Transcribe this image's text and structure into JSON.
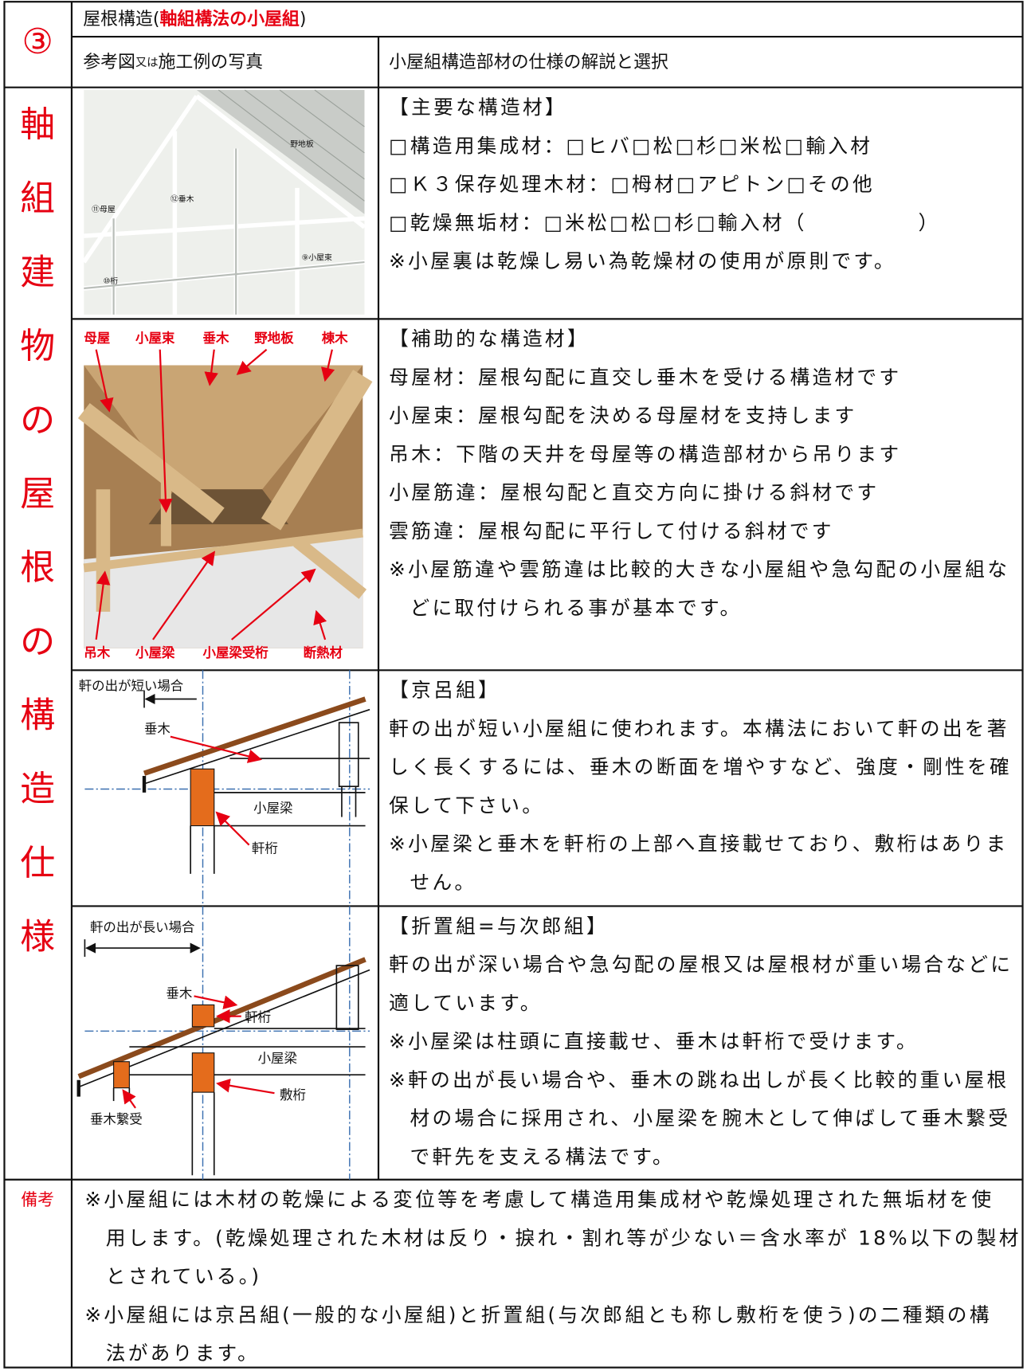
{
  "header": {
    "number": "③",
    "title_prefix": "屋根構造(",
    "title_emphasis": "軸組構法の小屋組",
    "title_suffix": ")",
    "col_figure": [
      "参考図",
      "又は",
      "施工例の写真"
    ],
    "col_spec": "小屋組構造部材の仕様の解説と選択"
  },
  "side_label": [
    "軸",
    "組",
    "建",
    "物",
    "の",
    "屋",
    "根",
    "の",
    "構",
    "造",
    "仕",
    "様"
  ],
  "rows": [
    {
      "figure_labels": [
        "野地板",
        "⑪母屋",
        "⑫垂木",
        "⑨小屋束",
        "⑩桁"
      ],
      "text": [
        [
          "【主要な構造材】"
        ],
        [
          "□構造用集成材：□ヒバ□松□杉□米松□輸入材"
        ],
        [
          "□Ｋ３保存処理木材：□栂材□アピトン□その他"
        ],
        [
          "□乾燥無垢材：□米松□松□杉□輸入材（　　　　　）"
        ],
        [
          "※小屋裏は乾燥し易い為乾燥材の使用が原則です。"
        ]
      ]
    },
    {
      "figure_labels": [
        "母屋",
        "小屋束",
        "垂木",
        "野地板",
        "棟木",
        "吊木",
        "小屋梁",
        "小屋梁受桁",
        "断熱材"
      ],
      "text": [
        [
          "【補助的な構造材】"
        ],
        [
          "母屋材：屋根勾配に直交し垂木を受ける構造材です"
        ],
        [
          "小屋束：屋根勾配を決める母屋材を支持します"
        ],
        [
          "吊木：下階の天井を母屋等の構造部材から吊ります"
        ],
        [
          "小屋筋違：屋根勾配と直交方向に掛ける斜材です"
        ],
        [
          "雲筋違：屋根勾配に平行して付ける斜材です"
        ],
        [
          "※小屋筋違や雲筋違は比較的大きな小屋組や急勾配の小屋組な",
          "どに取付けられる事が基本です。"
        ]
      ]
    },
    {
      "figure_labels": [
        "軒の出が短い場合",
        "垂木",
        "小屋梁",
        "軒桁"
      ],
      "text": [
        [
          "【京呂組】"
        ],
        [
          "軒の出が短い小屋組に使われます。本構法において軒の出を著",
          "しく長くするには、垂木の断面を増やすなど、強度・剛性を確",
          "保して下さい。"
        ],
        [
          "※小屋梁と垂木を軒桁の上部へ直接載せており、敷桁はありま",
          "せん。"
        ]
      ]
    },
    {
      "figure_labels": [
        "軒の出が長い場合",
        "垂木",
        "軒桁",
        "小屋梁",
        "敷桁",
        "垂木繋受"
      ],
      "text": [
        [
          "【折置組=与次郎組】"
        ],
        [
          "軒の出が深い場合や急勾配の屋根又は屋根材が重い場合などに",
          "適しています。"
        ],
        [
          "※小屋梁は柱頭に直接載せ、垂木は軒桁で受けます。"
        ],
        [
          "※軒の出が長い場合や、垂木の跳ね出しが長く比較的重い屋根",
          "材の場合に採用され、小屋梁を腕木として伸ばして垂木繋受",
          "で軒先を支える構法です。"
        ]
      ]
    }
  ],
  "remarks": {
    "label": "備考",
    "text": [
      [
        "※小屋組には木材の乾燥による変位等を考慮して構造用集成材や乾燥処理された無垢材を使",
        "用します。(乾燥処理された木材は反り・捩れ・割れ等が少ない＝含水率が 18%以下の製材",
        "とされている。)"
      ],
      [
        "※小屋組には京呂組(一般的な小屋組)と折置組(与次郎組とも称し敷桁を使う)の二種類の構",
        "法があります。"
      ]
    ]
  }
}
